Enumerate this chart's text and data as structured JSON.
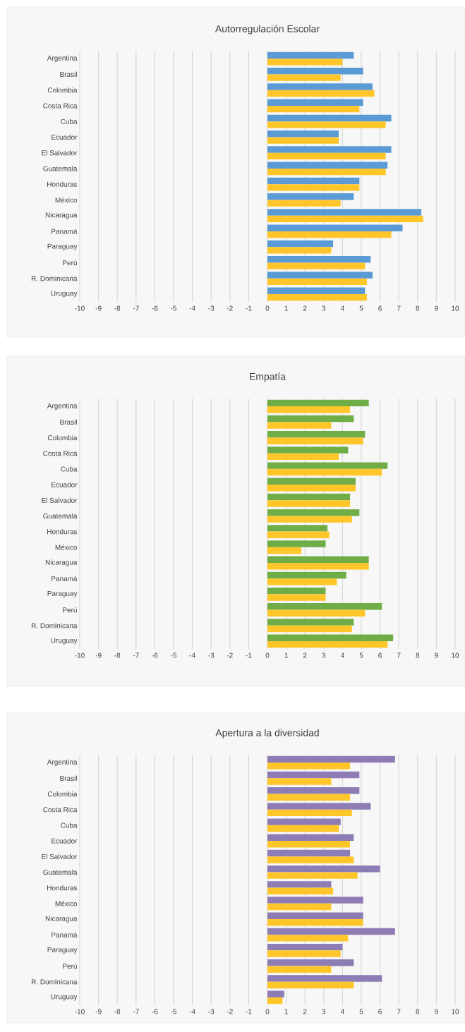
{
  "chart_data": [
    {
      "type": "bar",
      "orientation": "horizontal",
      "title": "Autorregulación Escolar",
      "grid": "x",
      "categories": [
        "Argentina",
        "Brasil",
        "Colombia",
        "Costa Rica",
        "Cuba",
        "Ecuador",
        "El Salvador",
        "Guatemala",
        "Honduras",
        "México",
        "Nicaragua",
        "Panamá",
        "Paraguay",
        "Perú",
        "R. Dominicana",
        "Uruguay"
      ],
      "xlim": [
        -10,
        10
      ],
      "xticks": [
        -10,
        -9,
        -8,
        -7,
        -6,
        -5,
        -4,
        -3,
        -2,
        -1,
        0,
        1,
        2,
        3,
        4,
        5,
        6,
        7,
        8,
        9,
        10
      ],
      "series": [
        {
          "color": "#5b9bd5",
          "values": [
            4.6,
            5.1,
            5.6,
            5.1,
            6.6,
            3.8,
            6.6,
            6.4,
            4.9,
            4.6,
            8.2,
            7.2,
            3.5,
            5.5,
            5.6,
            5.2
          ]
        },
        {
          "color": "#ffc629",
          "values": [
            4.0,
            3.9,
            5.7,
            4.9,
            6.3,
            3.8,
            6.3,
            6.3,
            4.9,
            3.9,
            8.3,
            6.6,
            3.4,
            5.2,
            5.3,
            5.3
          ]
        }
      ]
    },
    {
      "type": "bar",
      "orientation": "horizontal",
      "title": "Empatía",
      "grid": "x",
      "categories": [
        "Argentina",
        "Brasil",
        "Colombia",
        "Costa Rica",
        "Cuba",
        "Ecuador",
        "El Salvador",
        "Guatemala",
        "Honduras",
        "México",
        "Nicaragua",
        "Panamá",
        "Paraguay",
        "Perú",
        "R. Dominicana",
        "Uruguay"
      ],
      "xlim": [
        -10,
        10
      ],
      "xticks": [
        -10,
        -9,
        -8,
        -7,
        -6,
        -5,
        -4,
        -3,
        -2,
        -1,
        0,
        1,
        2,
        3,
        4,
        5,
        6,
        7,
        8,
        9,
        10
      ],
      "series": [
        {
          "color": "#70ad47",
          "values": [
            5.4,
            4.6,
            5.2,
            4.3,
            6.4,
            4.7,
            4.4,
            4.9,
            3.2,
            3.1,
            5.4,
            4.2,
            3.1,
            6.1,
            4.6,
            6.7
          ]
        },
        {
          "color": "#ffc629",
          "values": [
            4.4,
            3.4,
            5.1,
            3.8,
            6.1,
            4.7,
            4.4,
            4.5,
            3.3,
            1.8,
            5.4,
            3.7,
            3.1,
            5.2,
            4.5,
            6.4
          ]
        }
      ]
    },
    {
      "type": "bar",
      "orientation": "horizontal",
      "title": "Apertura a la diversidad",
      "grid": "x",
      "categories": [
        "Argentina",
        "Brasil",
        "Colombia",
        "Costa Rica",
        "Cuba",
        "Ecuador",
        "El Salvador",
        "Guatemala",
        "Honduras",
        "México",
        "Nicaragua",
        "Panamá",
        "Paraguay",
        "Perú",
        "R. Dominicana",
        "Uruguay"
      ],
      "xlim": [
        -10,
        10
      ],
      "xticks": [
        -10,
        -9,
        -8,
        -7,
        -6,
        -5,
        -4,
        -3,
        -2,
        -1,
        0,
        1,
        2,
        3,
        4,
        5,
        6,
        7,
        8,
        9,
        10
      ],
      "series": [
        {
          "color": "#8e7cb5",
          "values": [
            6.8,
            4.9,
            4.9,
            5.5,
            3.9,
            4.6,
            4.4,
            6.0,
            3.4,
            5.1,
            5.1,
            6.8,
            4.0,
            4.6,
            6.1,
            0.9
          ]
        },
        {
          "color": "#ffc629",
          "values": [
            4.4,
            3.4,
            4.4,
            4.5,
            3.8,
            4.4,
            4.6,
            4.8,
            3.5,
            3.4,
            5.1,
            4.3,
            3.9,
            3.4,
            4.6,
            0.8
          ]
        }
      ]
    }
  ]
}
